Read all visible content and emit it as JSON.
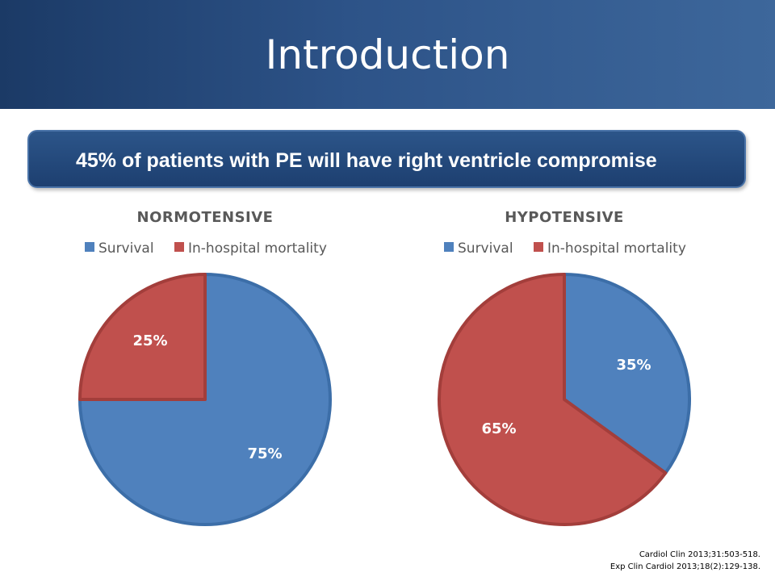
{
  "slide": {
    "title": "Introduction",
    "banner": "45% of patients with PE will have right ventricle compromise",
    "references": [
      "Cardiol Clin 2013;31:503-518.",
      "Exp Clin Cardiol 2013;18(2):129-138."
    ]
  },
  "colors": {
    "survival": "#4f81bd",
    "mortality": "#c0504d",
    "survival_edge": "#3c6ea8",
    "mortality_edge": "#a33e3b"
  },
  "chart_data": [
    {
      "type": "pie",
      "title": "NORMOTENSIVE",
      "categories": [
        "Survival",
        "In-hospital mortality"
      ],
      "values": [
        75,
        25
      ],
      "labels": [
        "75%",
        "25%"
      ],
      "legend": "top"
    },
    {
      "type": "pie",
      "title": "HYPOTENSIVE",
      "categories": [
        "Survival",
        "In-hospital mortality"
      ],
      "values": [
        35,
        65
      ],
      "labels": [
        "35%",
        "65%"
      ],
      "legend": "top"
    }
  ]
}
